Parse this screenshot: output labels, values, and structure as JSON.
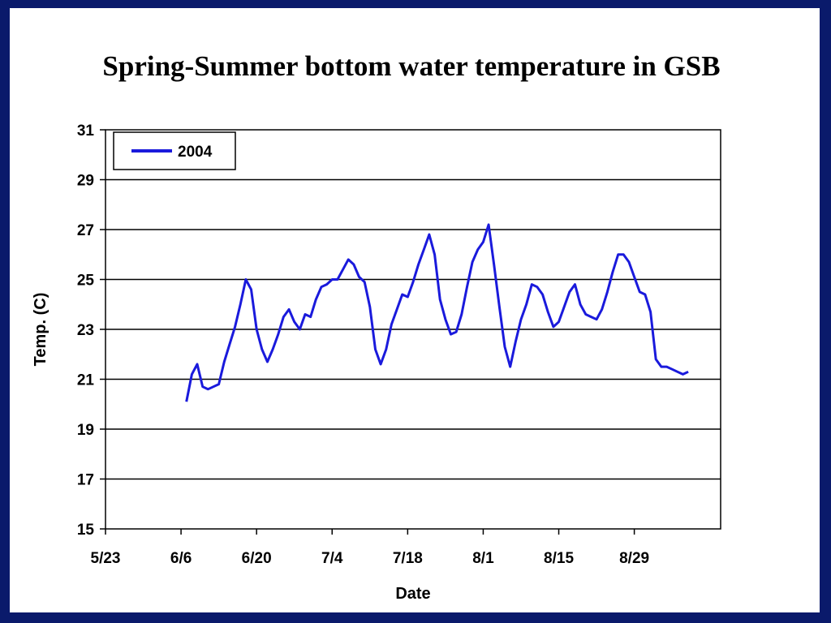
{
  "slide": {
    "title": "Spring-Summer bottom water temperature in GSB"
  },
  "colors": {
    "background": "#0a1a6b",
    "series": "#1a1adc",
    "gridline": "#000000"
  },
  "chart_data": {
    "type": "line",
    "title": "Spring-Summer bottom water temperature in GSB",
    "xlabel": "Date",
    "ylabel": "Temp. (C)",
    "ylim": [
      15,
      31
    ],
    "yticks": [
      15,
      17,
      19,
      21,
      23,
      25,
      27,
      29,
      31
    ],
    "xlim": [
      "5/23",
      "9/14"
    ],
    "xticks": [
      "5/23",
      "6/6",
      "6/20",
      "7/4",
      "7/18",
      "8/1",
      "8/15",
      "8/29"
    ],
    "grid": "horizontal",
    "legend": "top-left",
    "series": [
      {
        "name": "2004",
        "x": [
          "6/7",
          "6/8",
          "6/9",
          "6/10",
          "6/11",
          "6/12",
          "6/13",
          "6/14",
          "6/15",
          "6/16",
          "6/17",
          "6/18",
          "6/19",
          "6/20",
          "6/21",
          "6/22",
          "6/23",
          "6/24",
          "6/25",
          "6/26",
          "6/27",
          "6/28",
          "6/29",
          "6/30",
          "7/1",
          "7/2",
          "7/3",
          "7/4",
          "7/5",
          "7/6",
          "7/7",
          "7/8",
          "7/9",
          "7/10",
          "7/11",
          "7/12",
          "7/13",
          "7/14",
          "7/15",
          "7/16",
          "7/17",
          "7/18",
          "7/19",
          "7/20",
          "7/21",
          "7/22",
          "7/23",
          "7/24",
          "7/25",
          "7/26",
          "7/27",
          "7/28",
          "7/29",
          "7/30",
          "7/31",
          "8/1",
          "8/2",
          "8/3",
          "8/4",
          "8/5",
          "8/6",
          "8/7",
          "8/8",
          "8/9",
          "8/10",
          "8/11",
          "8/12",
          "8/13",
          "8/14",
          "8/15",
          "8/16",
          "8/17",
          "8/18",
          "8/19",
          "8/20",
          "8/21",
          "8/22",
          "8/23",
          "8/24",
          "8/25",
          "8/26",
          "8/27",
          "8/28",
          "8/29",
          "8/30",
          "8/31",
          "9/1",
          "9/2",
          "9/3",
          "9/4",
          "9/5",
          "9/6",
          "9/7",
          "9/8"
        ],
        "y": [
          20.1,
          21.2,
          21.6,
          20.7,
          20.6,
          20.7,
          20.8,
          21.7,
          22.4,
          23.1,
          24.0,
          25.0,
          24.6,
          23.0,
          22.2,
          21.7,
          22.2,
          22.8,
          23.5,
          23.8,
          23.3,
          23.0,
          23.6,
          23.5,
          24.2,
          24.7,
          24.8,
          25.0,
          25.0,
          25.4,
          25.8,
          25.6,
          25.1,
          24.9,
          23.9,
          22.2,
          21.6,
          22.2,
          23.2,
          23.8,
          24.4,
          24.3,
          24.9,
          25.6,
          26.2,
          26.8,
          26.0,
          24.2,
          23.4,
          22.8,
          22.9,
          23.6,
          24.7,
          25.7,
          26.2,
          26.5,
          27.2,
          25.6,
          23.9,
          22.3,
          21.5,
          22.5,
          23.4,
          24.0,
          24.8,
          24.7,
          24.4,
          23.7,
          23.1,
          23.3,
          23.9,
          24.5,
          24.8,
          24.0,
          23.6,
          23.5,
          23.4,
          23.8,
          24.5,
          25.3,
          26.0,
          26.0,
          25.7,
          25.1,
          24.5,
          24.4,
          23.7,
          21.8,
          21.5,
          21.5,
          21.4,
          21.3,
          21.2,
          21.3
        ]
      }
    ]
  }
}
